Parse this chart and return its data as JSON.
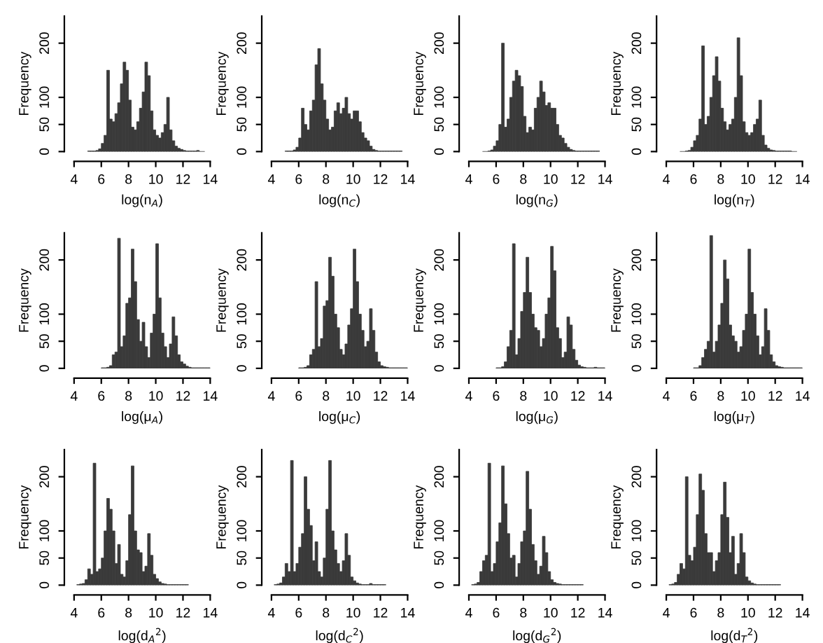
{
  "chart_data": [
    {
      "type": "histogram",
      "xlabel": "log(n$_{A}$)",
      "ylabel": "Frequency",
      "color": "#3a3a3a",
      "xlim": [
        4,
        14
      ],
      "xticks": [
        4,
        6,
        8,
        10,
        12,
        14
      ],
      "ylim": [
        0,
        250
      ],
      "yticks": [
        0,
        50,
        100,
        200
      ],
      "bins": [
        5,
        5.2,
        5.4,
        5.6,
        5.8,
        6,
        6.2,
        6.4,
        6.6,
        6.8,
        7,
        7.2,
        7.4,
        7.6,
        7.8,
        8,
        8.2,
        8.4,
        8.6,
        8.8,
        9,
        9.2,
        9.4,
        9.6,
        9.8,
        10,
        10.2,
        10.4,
        10.6,
        10.8,
        11,
        11.2,
        11.4,
        11.6,
        11.8,
        12,
        12.2,
        12.4,
        12.6,
        12.8,
        13,
        13.2,
        13.4,
        13.6
      ],
      "values": [
        1,
        1,
        1,
        2,
        5,
        15,
        30,
        150,
        60,
        55,
        70,
        90,
        125,
        165,
        150,
        95,
        45,
        40,
        55,
        80,
        110,
        165,
        140,
        75,
        40,
        30,
        25,
        35,
        50,
        100,
        40,
        20,
        10,
        6,
        4,
        2,
        1,
        1,
        1,
        1,
        2,
        0,
        0
      ]
    },
    {
      "type": "histogram",
      "xlabel": "log(n$_{C}$)",
      "ylabel": "Frequency",
      "color": "#3a3a3a",
      "xlim": [
        4,
        14
      ],
      "xticks": [
        4,
        6,
        8,
        10,
        12,
        14
      ],
      "ylim": [
        0,
        250
      ],
      "yticks": [
        0,
        50,
        100,
        200
      ],
      "bins": [
        5,
        5.2,
        5.4,
        5.6,
        5.8,
        6,
        6.2,
        6.4,
        6.6,
        6.8,
        7,
        7.2,
        7.4,
        7.6,
        7.8,
        8,
        8.2,
        8.4,
        8.6,
        8.8,
        9,
        9.2,
        9.4,
        9.6,
        9.8,
        10,
        10.2,
        10.4,
        10.6,
        10.8,
        11,
        11.2,
        11.4,
        11.6,
        11.8,
        12,
        12.2,
        12.4,
        12.6,
        12.8,
        13,
        13.2,
        13.4,
        13.6
      ],
      "values": [
        1,
        1,
        1,
        3,
        8,
        25,
        80,
        50,
        40,
        75,
        95,
        160,
        190,
        125,
        95,
        60,
        40,
        45,
        75,
        90,
        70,
        80,
        100,
        70,
        60,
        75,
        75,
        55,
        35,
        25,
        20,
        10,
        4,
        2,
        1,
        1,
        1,
        1,
        1,
        1,
        1,
        1,
        1
      ]
    },
    {
      "type": "histogram",
      "xlabel": "log(n$_{G}$)",
      "ylabel": "Frequency",
      "color": "#3a3a3a",
      "xlim": [
        4,
        14
      ],
      "xticks": [
        4,
        6,
        8,
        10,
        12,
        14
      ],
      "ylim": [
        0,
        250
      ],
      "yticks": [
        0,
        50,
        100,
        200
      ],
      "bins": [
        5,
        5.2,
        5.4,
        5.6,
        5.8,
        6,
        6.2,
        6.4,
        6.6,
        6.8,
        7,
        7.2,
        7.4,
        7.6,
        7.8,
        8,
        8.2,
        8.4,
        8.6,
        8.8,
        9,
        9.2,
        9.4,
        9.6,
        9.8,
        10,
        10.2,
        10.4,
        10.6,
        10.8,
        11,
        11.2,
        11.4,
        11.6,
        11.8,
        12,
        12.2,
        12.4,
        12.6,
        12.8,
        13,
        13.2,
        13.4,
        13.6
      ],
      "values": [
        0,
        0,
        1,
        3,
        10,
        20,
        50,
        200,
        45,
        60,
        100,
        130,
        150,
        140,
        120,
        65,
        35,
        45,
        40,
        80,
        100,
        130,
        110,
        85,
        90,
        80,
        80,
        50,
        30,
        25,
        15,
        8,
        4,
        2,
        1,
        1,
        1,
        1,
        1,
        1,
        1,
        1,
        1
      ]
    },
    {
      "type": "histogram",
      "xlabel": "log(n$_{T}$)",
      "ylabel": "Frequency",
      "color": "#3a3a3a",
      "xlim": [
        4,
        14
      ],
      "xticks": [
        4,
        6,
        8,
        10,
        12,
        14
      ],
      "ylim": [
        0,
        250
      ],
      "yticks": [
        0,
        50,
        100,
        200
      ],
      "bins": [
        5,
        5.2,
        5.4,
        5.6,
        5.8,
        6,
        6.2,
        6.4,
        6.6,
        6.8,
        7,
        7.2,
        7.4,
        7.6,
        7.8,
        8,
        8.2,
        8.4,
        8.6,
        8.8,
        9,
        9.2,
        9.4,
        9.6,
        9.8,
        10,
        10.2,
        10.4,
        10.6,
        10.8,
        11,
        11.2,
        11.4,
        11.6,
        11.8,
        12,
        12.2,
        12.4,
        12.6,
        12.8,
        13,
        13.2,
        13.4,
        13.6
      ],
      "values": [
        0,
        0,
        1,
        2,
        8,
        20,
        30,
        60,
        195,
        50,
        65,
        100,
        140,
        175,
        130,
        80,
        55,
        40,
        50,
        60,
        100,
        210,
        140,
        55,
        35,
        30,
        35,
        50,
        60,
        95,
        30,
        12,
        6,
        3,
        2,
        1,
        1,
        1,
        1,
        1,
        1,
        0,
        0
      ]
    },
    {
      "type": "histogram",
      "xlabel": "log(μ$_{A}$)",
      "ylabel": "Frequency",
      "color": "#3a3a3a",
      "xlim": [
        4,
        14
      ],
      "xticks": [
        4,
        6,
        8,
        10,
        12,
        14
      ],
      "ylim": [
        0,
        250
      ],
      "yticks": [
        0,
        50,
        100,
        200
      ],
      "bins": [
        6,
        6.2,
        6.4,
        6.6,
        6.8,
        7,
        7.2,
        7.4,
        7.6,
        7.8,
        8,
        8.2,
        8.4,
        8.6,
        8.8,
        9,
        9.2,
        9.4,
        9.6,
        9.8,
        10,
        10.2,
        10.4,
        10.6,
        10.8,
        11,
        11.2,
        11.4,
        11.6,
        11.8,
        12,
        12.2,
        12.4,
        12.6,
        12.8,
        13,
        13.2,
        13.4,
        13.6,
        13.8,
        14
      ],
      "values": [
        1,
        1,
        2,
        5,
        25,
        30,
        240,
        40,
        60,
        120,
        130,
        220,
        160,
        90,
        50,
        85,
        40,
        20,
        65,
        100,
        230,
        130,
        65,
        40,
        20,
        45,
        95,
        60,
        25,
        12,
        8,
        4,
        2,
        1,
        1,
        1,
        1,
        1,
        1,
        1
      ]
    },
    {
      "type": "histogram",
      "xlabel": "log(μ$_{C}$)",
      "ylabel": "Frequency",
      "color": "#3a3a3a",
      "xlim": [
        4,
        14
      ],
      "xticks": [
        4,
        6,
        8,
        10,
        12,
        14
      ],
      "ylim": [
        0,
        250
      ],
      "yticks": [
        0,
        50,
        100,
        200
      ],
      "bins": [
        6,
        6.2,
        6.4,
        6.6,
        6.8,
        7,
        7.2,
        7.4,
        7.6,
        7.8,
        8,
        8.2,
        8.4,
        8.6,
        8.8,
        9,
        9.2,
        9.4,
        9.6,
        9.8,
        10,
        10.2,
        10.4,
        10.6,
        10.8,
        11,
        11.2,
        11.4,
        11.6,
        11.8,
        12,
        12.2,
        12.4,
        12.6,
        12.8,
        13,
        13.2,
        13.4,
        13.6,
        13.8,
        14
      ],
      "values": [
        1,
        1,
        2,
        5,
        25,
        35,
        160,
        40,
        55,
        115,
        125,
        205,
        170,
        100,
        75,
        35,
        25,
        45,
        80,
        110,
        220,
        160,
        100,
        70,
        40,
        50,
        110,
        70,
        30,
        12,
        5,
        3,
        2,
        1,
        1,
        1,
        1,
        1,
        1,
        1
      ]
    },
    {
      "type": "histogram",
      "xlabel": "log(μ$_{G}$)",
      "ylabel": "Frequency",
      "color": "#3a3a3a",
      "xlim": [
        4,
        14
      ],
      "xticks": [
        4,
        6,
        8,
        10,
        12,
        14
      ],
      "ylim": [
        0,
        250
      ],
      "yticks": [
        0,
        50,
        100,
        200
      ],
      "bins": [
        6,
        6.2,
        6.4,
        6.6,
        6.8,
        7,
        7.2,
        7.4,
        7.6,
        7.8,
        8,
        8.2,
        8.4,
        8.6,
        8.8,
        9,
        9.2,
        9.4,
        9.6,
        9.8,
        10,
        10.2,
        10.4,
        10.6,
        10.8,
        11,
        11.2,
        11.4,
        11.6,
        11.8,
        12,
        12.2,
        12.4,
        12.6,
        12.8,
        13,
        13.2,
        13.4,
        13.6,
        13.8,
        14
      ],
      "values": [
        1,
        1,
        3,
        12,
        40,
        70,
        230,
        25,
        55,
        105,
        140,
        205,
        140,
        100,
        75,
        70,
        40,
        55,
        100,
        130,
        225,
        180,
        75,
        55,
        20,
        30,
        95,
        80,
        35,
        15,
        6,
        3,
        2,
        1,
        1,
        1,
        2,
        1,
        1,
        1
      ]
    },
    {
      "type": "histogram",
      "xlabel": "log(μ$_{T}$)",
      "ylabel": "Frequency",
      "color": "#3a3a3a",
      "xlim": [
        4,
        14
      ],
      "xticks": [
        4,
        6,
        8,
        10,
        12,
        14
      ],
      "ylim": [
        0,
        250
      ],
      "yticks": [
        0,
        50,
        100,
        200
      ],
      "bins": [
        6,
        6.2,
        6.4,
        6.6,
        6.8,
        7,
        7.2,
        7.4,
        7.6,
        7.8,
        8,
        8.2,
        8.4,
        8.6,
        8.8,
        9,
        9.2,
        9.4,
        9.6,
        9.8,
        10,
        10.2,
        10.4,
        10.6,
        10.8,
        11,
        11.2,
        11.4,
        11.6,
        11.8,
        12,
        12.2,
        12.4,
        12.6,
        12.8,
        13,
        13.2,
        13.4,
        13.6,
        13.8,
        14
      ],
      "values": [
        1,
        1,
        5,
        20,
        35,
        50,
        245,
        30,
        50,
        80,
        120,
        200,
        165,
        80,
        60,
        50,
        30,
        40,
        70,
        100,
        220,
        140,
        100,
        60,
        25,
        40,
        110,
        70,
        25,
        12,
        5,
        3,
        2,
        1,
        1,
        1,
        1,
        1,
        1,
        1
      ]
    },
    {
      "type": "histogram",
      "xlabel": "log(d$_{A}$$^{2}$)",
      "ylabel": "Frequency",
      "color": "#3a3a3a",
      "xlim": [
        4,
        14
      ],
      "xticks": [
        4,
        6,
        8,
        10,
        12,
        14
      ],
      "ylim": [
        0,
        250
      ],
      "yticks": [
        0,
        50,
        100,
        200
      ],
      "bins": [
        4.2,
        4.4,
        4.6,
        4.8,
        5,
        5.2,
        5.4,
        5.6,
        5.8,
        6,
        6.2,
        6.4,
        6.6,
        6.8,
        7,
        7.2,
        7.4,
        7.6,
        7.8,
        8,
        8.2,
        8.4,
        8.6,
        8.8,
        9,
        9.2,
        9.4,
        9.6,
        9.8,
        10,
        10.2,
        10.4,
        10.6,
        10.8,
        11,
        11.2,
        11.4,
        11.6,
        11.8,
        12,
        12.2,
        12.4
      ],
      "values": [
        1,
        2,
        3,
        10,
        30,
        20,
        225,
        25,
        30,
        50,
        100,
        160,
        140,
        100,
        40,
        75,
        20,
        15,
        45,
        130,
        220,
        100,
        65,
        60,
        25,
        35,
        95,
        55,
        20,
        12,
        6,
        3,
        2,
        1,
        1,
        1,
        1,
        1,
        1,
        1,
        1
      ]
    },
    {
      "type": "histogram",
      "xlabel": "log(d$_{C}$$^{2}$)",
      "ylabel": "Frequency",
      "color": "#3a3a3a",
      "xlim": [
        4,
        14
      ],
      "xticks": [
        4,
        6,
        8,
        10,
        12,
        14
      ],
      "ylim": [
        0,
        250
      ],
      "yticks": [
        0,
        50,
        100,
        200
      ],
      "bins": [
        4.2,
        4.4,
        4.6,
        4.8,
        5,
        5.2,
        5.4,
        5.6,
        5.8,
        6,
        6.2,
        6.4,
        6.6,
        6.8,
        7,
        7.2,
        7.4,
        7.6,
        7.8,
        8,
        8.2,
        8.4,
        8.6,
        8.8,
        9,
        9.2,
        9.4,
        9.6,
        9.8,
        10,
        10.2,
        10.4,
        10.6,
        10.8,
        11,
        11.2,
        11.4,
        11.6,
        11.8,
        12,
        12.2,
        12.4
      ],
      "values": [
        1,
        2,
        4,
        15,
        40,
        25,
        230,
        25,
        40,
        70,
        95,
        200,
        140,
        110,
        45,
        80,
        25,
        15,
        50,
        140,
        230,
        100,
        65,
        40,
        25,
        45,
        95,
        55,
        15,
        8,
        4,
        2,
        1,
        1,
        1,
        3,
        1,
        1,
        1,
        1,
        1
      ]
    },
    {
      "type": "histogram",
      "xlabel": "log(d$_{G}$$^{2}$)",
      "ylabel": "Frequency",
      "color": "#3a3a3a",
      "xlim": [
        4,
        14
      ],
      "xticks": [
        4,
        6,
        8,
        10,
        12,
        14
      ],
      "ylim": [
        0,
        250
      ],
      "yticks": [
        0,
        50,
        100,
        200
      ],
      "bins": [
        4.2,
        4.4,
        4.6,
        4.8,
        5,
        5.2,
        5.4,
        5.6,
        5.8,
        6,
        6.2,
        6.4,
        6.6,
        6.8,
        7,
        7.2,
        7.4,
        7.6,
        7.8,
        8,
        8.2,
        8.4,
        8.6,
        8.8,
        9,
        9.2,
        9.4,
        9.6,
        9.8,
        10,
        10.2,
        10.4,
        10.6,
        10.8,
        11,
        11.2,
        11.4,
        11.6,
        11.8,
        12,
        12.2,
        12.4
      ],
      "values": [
        1,
        2,
        5,
        25,
        45,
        55,
        225,
        25,
        40,
        80,
        115,
        220,
        150,
        95,
        50,
        55,
        15,
        40,
        80,
        100,
        210,
        140,
        75,
        45,
        20,
        35,
        90,
        60,
        25,
        10,
        5,
        3,
        2,
        1,
        1,
        1,
        1,
        1,
        1,
        1,
        1
      ]
    },
    {
      "type": "histogram",
      "xlabel": "log(d$_{T}$$^{2}$)",
      "ylabel": "Frequency",
      "color": "#3a3a3a",
      "xlim": [
        4,
        14
      ],
      "xticks": [
        4,
        6,
        8,
        10,
        12,
        14
      ],
      "ylim": [
        0,
        250
      ],
      "yticks": [
        0,
        50,
        100,
        200
      ],
      "bins": [
        4.2,
        4.4,
        4.6,
        4.8,
        5,
        5.2,
        5.4,
        5.6,
        5.8,
        6,
        6.2,
        6.4,
        6.6,
        6.8,
        7,
        7.2,
        7.4,
        7.6,
        7.8,
        8,
        8.2,
        8.4,
        8.6,
        8.8,
        9,
        9.2,
        9.4,
        9.6,
        9.8,
        10,
        10.2,
        10.4,
        10.6,
        10.8,
        11,
        11.2,
        11.4,
        11.6,
        11.8,
        12,
        12.2,
        12.4
      ],
      "values": [
        1,
        2,
        5,
        20,
        40,
        30,
        200,
        55,
        45,
        70,
        130,
        205,
        175,
        95,
        60,
        60,
        25,
        45,
        60,
        130,
        190,
        125,
        60,
        90,
        20,
        40,
        95,
        60,
        15,
        8,
        4,
        2,
        1,
        1,
        1,
        1,
        1,
        1,
        1,
        1,
        1
      ]
    }
  ]
}
